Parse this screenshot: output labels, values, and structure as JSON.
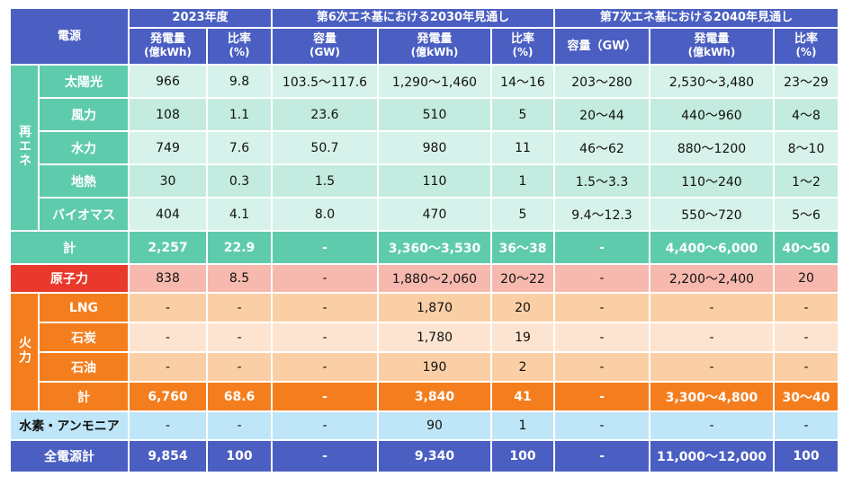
{
  "header": {
    "source_label": "電源",
    "group_2023": "2023年度",
    "group_6th": "第6次エネ基における2030年見通し",
    "group_7th": "第7次エネ基における2040年見通し",
    "gen_line1": "発電量",
    "gen_unit": "(億kWh)",
    "ratio_line1": "比率",
    "ratio_unit": "(%)",
    "cap_line1": "容量",
    "cap_unit": "(GW)",
    "cap_7th": "容量（GW）"
  },
  "groups": {
    "renewable": "再エネ",
    "thermal": "火力"
  },
  "rows": {
    "solar": {
      "label": "太陽光",
      "v": [
        "966",
        "9.8",
        "103.5～117.6",
        "1,290～1,460",
        "14～16",
        "203～280",
        "2,530～3,480",
        "23～29"
      ]
    },
    "wind": {
      "label": "風力",
      "v": [
        "108",
        "1.1",
        "23.6",
        "510",
        "5",
        "20～44",
        "440～960",
        "4～8"
      ]
    },
    "hydro": {
      "label": "水力",
      "v": [
        "749",
        "7.6",
        "50.7",
        "980",
        "11",
        "46～62",
        "880～1200",
        "8～10"
      ]
    },
    "geothermal": {
      "label": "地熱",
      "v": [
        "30",
        "0.3",
        "1.5",
        "110",
        "1",
        "1.5～3.3",
        "110～240",
        "1～2"
      ]
    },
    "biomass": {
      "label": "バイオマス",
      "v": [
        "404",
        "4.1",
        "8.0",
        "470",
        "5",
        "9.4～12.3",
        "550～720",
        "5～6"
      ]
    },
    "re_total": {
      "label": "計",
      "v": [
        "2,257",
        "22.9",
        "-",
        "3,360～3,530",
        "36～38",
        "-",
        "4,400～6,000",
        "40～50"
      ]
    },
    "nuclear": {
      "label": "原子力",
      "v": [
        "838",
        "8.5",
        "-",
        "1,880～2,060",
        "20～22",
        "-",
        "2,200～2,400",
        "20"
      ]
    },
    "lng": {
      "label": "LNG",
      "v": [
        "-",
        "-",
        "-",
        "1,870",
        "20",
        "-",
        "-",
        "-"
      ]
    },
    "coal": {
      "label": "石炭",
      "v": [
        "-",
        "-",
        "-",
        "1,780",
        "19",
        "-",
        "-",
        "-"
      ]
    },
    "oil": {
      "label": "石油",
      "v": [
        "-",
        "-",
        "-",
        "190",
        "2",
        "-",
        "-",
        "-"
      ]
    },
    "fi_total": {
      "label": "計",
      "v": [
        "6,760",
        "68.6",
        "-",
        "3,840",
        "41",
        "-",
        "3,300～4,800",
        "30～40"
      ]
    },
    "hydrogen": {
      "label": "水素・アンモニア",
      "v": [
        "-",
        "-",
        "-",
        "90",
        "1",
        "-",
        "-",
        "-"
      ]
    },
    "grand_total": {
      "label": "全電源計",
      "v": [
        "9,854",
        "100",
        "-",
        "9,340",
        "100",
        "-",
        "11,000～12,000",
        "100"
      ]
    }
  }
}
